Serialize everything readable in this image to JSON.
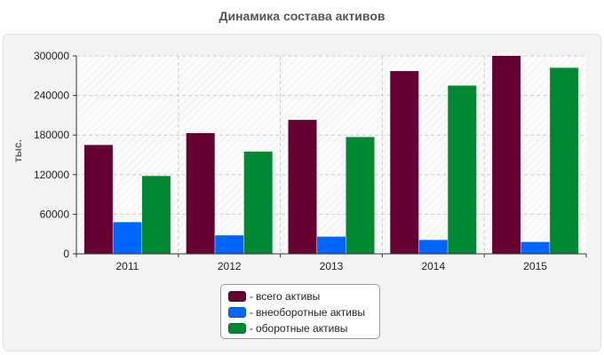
{
  "chart_data": {
    "type": "bar",
    "title": "Динамика состава активов",
    "ylabel": "тыс.",
    "xlabel": "",
    "categories": [
      "2011",
      "2012",
      "2013",
      "2014",
      "2015"
    ],
    "ylim": [
      0,
      300000
    ],
    "yticks": [
      0,
      60000,
      120000,
      180000,
      240000,
      300000
    ],
    "grid": true,
    "legend_position": "bottom-center",
    "series": [
      {
        "name": "всего активы",
        "color": "#660033",
        "values": [
          165000,
          183000,
          203000,
          277000,
          300000
        ]
      },
      {
        "name": "внеоборотные активы",
        "color": "#0066ff",
        "values": [
          48000,
          28000,
          26000,
          21000,
          18000
        ]
      },
      {
        "name": "оборотные активы",
        "color": "#008833",
        "values": [
          118000,
          155000,
          177000,
          255000,
          282000
        ]
      }
    ]
  },
  "legend": {
    "prefix": "-",
    "items": [
      "всего активы",
      "внеоборотные активы",
      "оборотные активы"
    ]
  }
}
